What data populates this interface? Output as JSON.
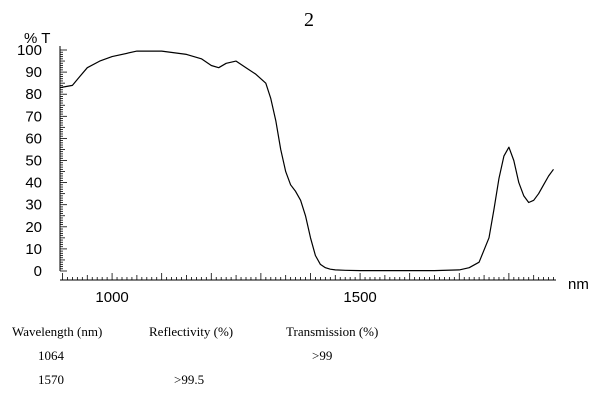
{
  "chart_data": {
    "type": "line",
    "title": "2",
    "ylabel": "% T",
    "xlabel": "nm",
    "xlim": [
      895,
      1895
    ],
    "ylim": [
      0,
      100
    ],
    "yticks": [
      0,
      10,
      20,
      30,
      40,
      50,
      60,
      70,
      80,
      90,
      100
    ],
    "xticks": [
      1000,
      1500
    ],
    "grid": false,
    "series": [
      {
        "x": [
          895,
          920,
          935,
          950,
          975,
          1000,
          1050,
          1100,
          1150,
          1180,
          1200,
          1215,
          1230,
          1250,
          1270,
          1290,
          1310,
          1320,
          1330,
          1340,
          1350,
          1360,
          1370,
          1380,
          1390,
          1400,
          1410,
          1420,
          1430,
          1440,
          1450,
          1470,
          1500,
          1550,
          1600,
          1650,
          1700,
          1720,
          1740,
          1760,
          1770,
          1780,
          1790,
          1800,
          1810,
          1820,
          1830,
          1840,
          1850,
          1860,
          1870,
          1880,
          1890
        ],
        "y": [
          83,
          84,
          88,
          92,
          95,
          97,
          99.5,
          99.5,
          98,
          96,
          93,
          92,
          94,
          95,
          92,
          89,
          85,
          78,
          68,
          55,
          45,
          39,
          36,
          32,
          25,
          15,
          7,
          3,
          1.5,
          0.8,
          0.5,
          0.3,
          0.2,
          0.2,
          0.2,
          0.2,
          0.5,
          1.5,
          4,
          15,
          28,
          42,
          52,
          56,
          50,
          40,
          34,
          31,
          32,
          35,
          39,
          43,
          46
        ]
      }
    ]
  },
  "table": {
    "headers": [
      "Wavelength (nm)",
      "Reflectivity (%)",
      "Transmission (%)"
    ],
    "rows": [
      [
        "1064",
        "",
        ">99"
      ],
      [
        "1570",
        ">99.5",
        ""
      ]
    ]
  }
}
